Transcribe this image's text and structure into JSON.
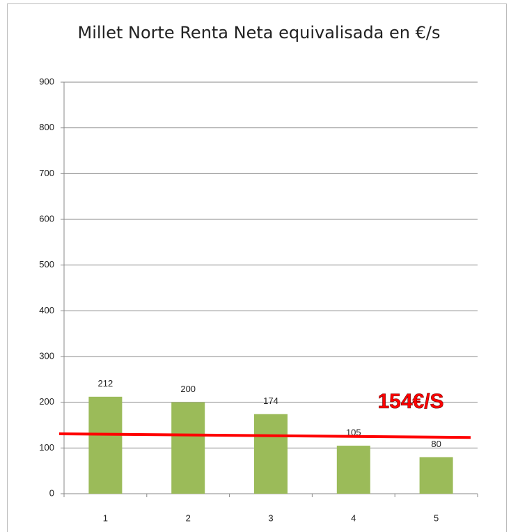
{
  "chart_data": {
    "type": "bar",
    "title": "Millet Norte Renta Neta equivalisada en €/s",
    "categories": [
      "1",
      "2",
      "3",
      "4",
      "5"
    ],
    "values": [
      212,
      200,
      174,
      105,
      80
    ],
    "color": "#9bbb59",
    "ylim": [
      0,
      900
    ],
    "yticks": [
      0,
      100,
      200,
      300,
      400,
      500,
      600,
      700,
      800,
      900
    ],
    "grid": true,
    "annotation": {
      "text": "154€/S",
      "color": "#ff0000"
    },
    "reference_line": {
      "values": [
        131,
        123
      ],
      "color": "#ff0000"
    }
  }
}
